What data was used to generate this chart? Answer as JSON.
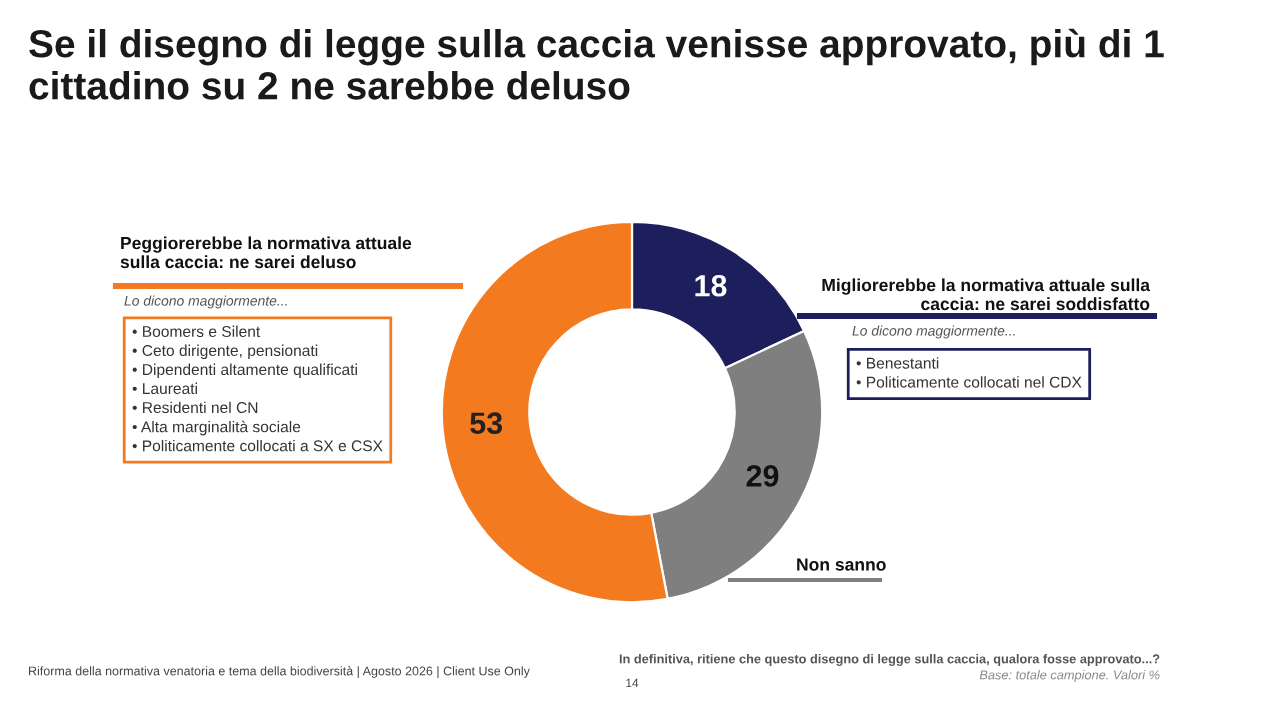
{
  "chart_data": {
    "type": "donut",
    "title": "Se il disegno di legge sulla caccia venisse approvato, più di 1 cittadino su 2 ne sarebbe deluso",
    "categories": [
      "Migliorerebbe la normativa attuale sulla\ncaccia: ne sarei soddisfatto",
      "Non sanno",
      "Peggiorerebbe la normativa attuale\nsulla caccia: ne sarei deluso"
    ],
    "values": [
      18,
      29,
      53
    ],
    "colors": [
      "#1c1f5c",
      "#7f7f7f",
      "#f47a20"
    ],
    "data_labels": true,
    "legend": false,
    "annotations": [
      "Lo dicono maggiormente...",
      "• Boomers e Silent\n• Ceto dirigente, pensionati\n• Dipendenti altamente qualificati\n• Laureati\n• Residenti nel CN\n• Alta marginalità sociale\n• Politicamente collocati a SX e CSX",
      "Lo dicono maggiormente...",
      "• Benestanti\n• Politicamente collocati nel CDX",
      "Riforma della normativa venatoria e tema della biodiversità | Agosto 2026 | Client Use Only",
      "14",
      "In definitiva, ritiene che questo disegno di legge sulla caccia, qualora fosse approvato...?",
      "Base: totale campione. Valori %"
    ]
  }
}
